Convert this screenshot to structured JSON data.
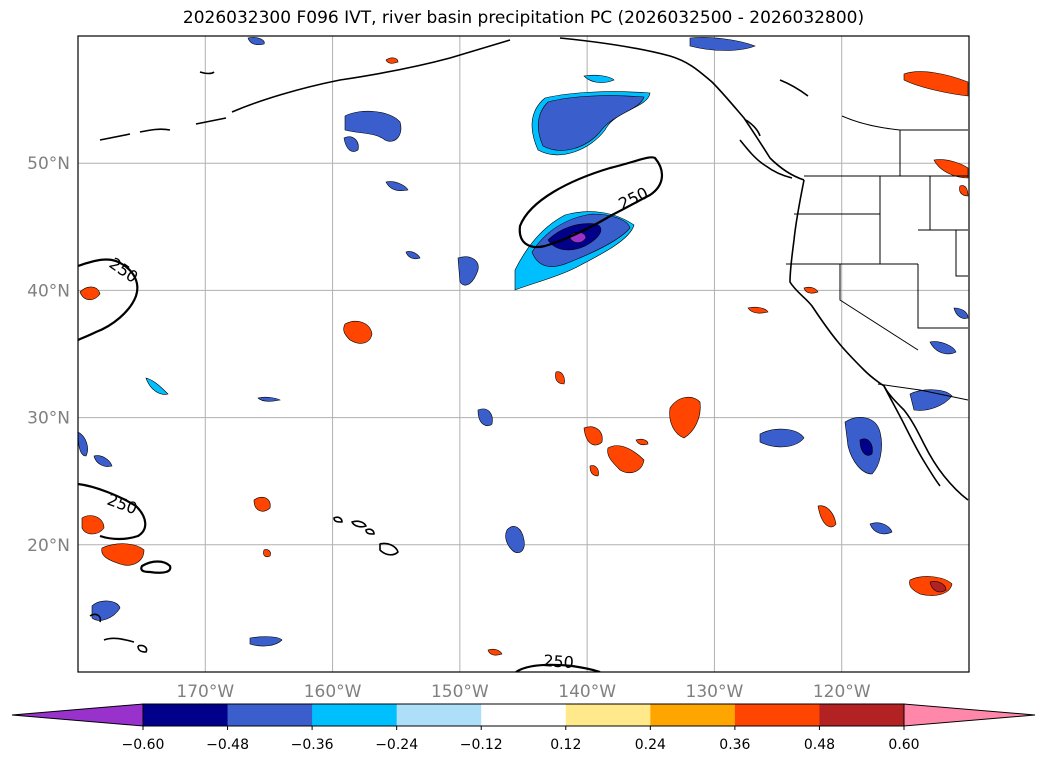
{
  "title": "2026032300 F096 IVT, river basin precipitation PC (2026032500 - 2026032800)",
  "map": {
    "lat_labels": [
      {
        "value": 50,
        "label": "50°N"
      },
      {
        "value": 40,
        "label": "40°N"
      },
      {
        "value": 30,
        "label": "30°N"
      },
      {
        "value": 20,
        "label": "20°N"
      }
    ],
    "lon_labels": [
      {
        "value": -170,
        "label": "170°W"
      },
      {
        "value": -160,
        "label": "160°W"
      },
      {
        "value": -150,
        "label": "150°W"
      },
      {
        "value": -140,
        "label": "140°W"
      },
      {
        "value": -130,
        "label": "130°W"
      },
      {
        "value": -120,
        "label": "120°W"
      }
    ],
    "ivt_contour_label": "250",
    "lat_range": [
      10,
      60
    ],
    "lon_range": [
      -180,
      -110
    ]
  },
  "colorbar": {
    "ticks": [
      "−0.60",
      "−0.48",
      "−0.36",
      "−0.24",
      "−0.12",
      "0.12",
      "0.24",
      "0.36",
      "0.48",
      "0.60"
    ],
    "colors": [
      "#9932CC",
      "#00008B",
      "#3A5FCD",
      "#00BFFF",
      "#ADE0F8",
      "#FFFFFF",
      "#FFE98A",
      "#FFA500",
      "#FF4500",
      "#B22222",
      "#FF88AA"
    ]
  },
  "colors": {
    "grid": "#b0b0b0",
    "label_gray": "#808080",
    "land_line": "#000000"
  }
}
